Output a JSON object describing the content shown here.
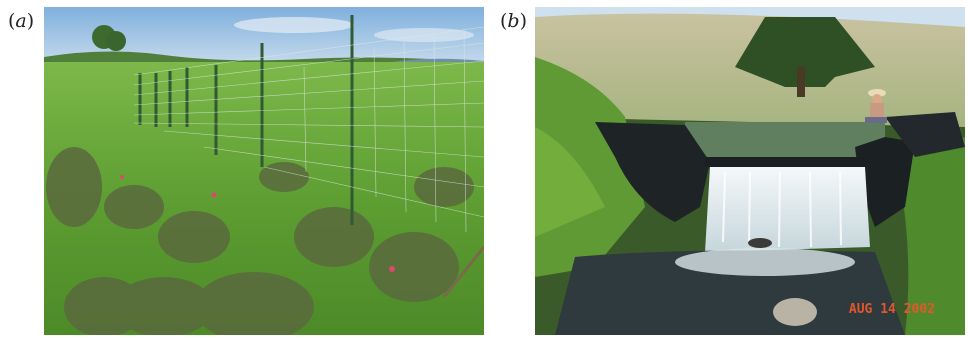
{
  "figure": {
    "panels": [
      {
        "label_open": "(",
        "label_letter": "a",
        "label_close": ")",
        "scene": "fenced-grassland-shrubs"
      },
      {
        "label_open": "(",
        "label_letter": "b",
        "label_close": ")",
        "scene": "stream-weir-waterfall",
        "date_stamp": "AUG 14 2002"
      }
    ]
  },
  "colors": {
    "sky": "#9cc3e8",
    "grass": "#5b9a2e",
    "water": "#e9f1f4"
  }
}
